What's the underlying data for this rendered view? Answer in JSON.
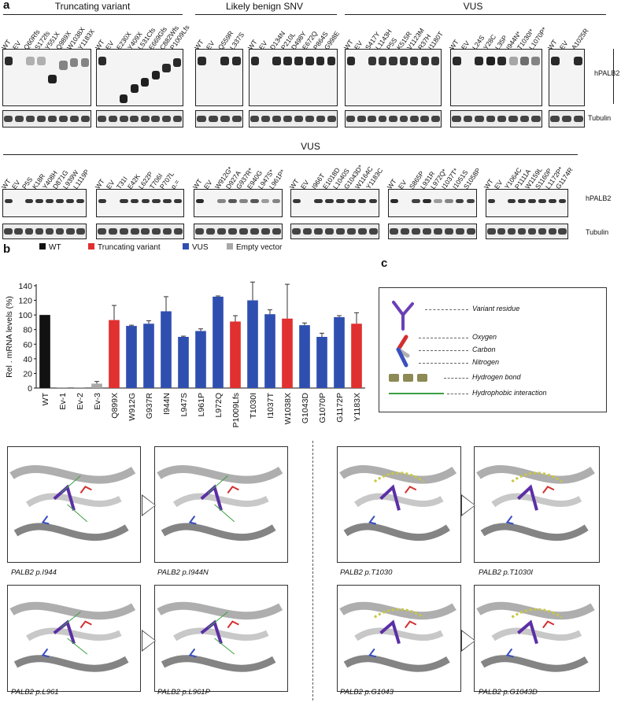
{
  "panels": {
    "a": "a",
    "b": "b",
    "c": "c"
  },
  "row1": {
    "groups": [
      {
        "title": "Truncating variant"
      },
      {
        "title": "Likely benign SNV"
      },
      {
        "title": "VUS"
      }
    ],
    "blots": [
      {
        "lanes": [
          "WT",
          "EV",
          "Q60Rfs",
          "S172fs",
          "Y551X",
          "Q989X",
          "W1038X",
          "Y1183X"
        ]
      },
      {
        "lanes": [
          "WT",
          "EV",
          "E230X",
          "Y409X",
          "L531Cfs",
          "E669Gfs",
          "C882Wfs",
          "P1009Lfs"
        ]
      },
      {
        "lanes": [
          "WT",
          "EV",
          "Q559R",
          "L337S"
        ]
      },
      {
        "lanes": [
          "WT",
          "EV",
          "D134N",
          "P210L",
          "D498Y",
          "E672Q",
          "P864S",
          "G998E"
        ]
      },
      {
        "lanes": [
          "WT",
          "EV",
          "S417Y",
          "L1143H",
          "P5S",
          "K515R",
          "V1123M",
          "R37H",
          "I1180T"
        ]
      },
      {
        "lanes": [
          "WT",
          "EV",
          "L24S",
          "Y28C",
          "L35P",
          "I944N*",
          "T1030I*",
          "L1070P*"
        ]
      },
      {
        "lanes": [
          "WT",
          "EV",
          "A1025R"
        ]
      }
    ],
    "side_label_top": "hPALB2",
    "side_label_bottom": "Tubulin"
  },
  "row2": {
    "title": "VUS",
    "blots": [
      {
        "lanes": [
          "WT",
          "EV",
          "P5S",
          "K18R",
          "Y408H",
          "D871G",
          "L939W",
          "L1119P"
        ]
      },
      {
        "lanes": [
          "WT",
          "EV",
          "T31I",
          "E42K",
          "L622P",
          "T706I",
          "P707L",
          "p.="
        ]
      },
      {
        "lanes": [
          "WT",
          "EV",
          "W912G*",
          "D927A",
          "G937R*",
          "E940G",
          "L947S*",
          "L961P*"
        ]
      },
      {
        "lanes": [
          "WT",
          "EV",
          "I966T",
          "E1018D",
          "L1040S",
          "G1043D*",
          "W1164C",
          "Y1183C"
        ]
      },
      {
        "lanes": [
          "WT",
          "EV",
          "S865P",
          "L931R",
          "L972Q*",
          "I1037T*",
          "I1051S",
          "S1058P"
        ]
      },
      {
        "lanes": [
          "WT",
          "EV",
          "Y1064C",
          "P1111A",
          "W1159L",
          "S1160P",
          "L1172P*",
          "G1174R"
        ]
      }
    ],
    "side_label_top": "hPALB2",
    "side_label_bottom": "Tubulin"
  },
  "chart_data": {
    "type": "bar",
    "ylabel": "Rel . mRNA levels (%)",
    "ylim": [
      0,
      140
    ],
    "yticks": [
      0,
      20,
      40,
      60,
      80,
      100,
      120,
      140
    ],
    "legend": [
      {
        "name": "WT",
        "color": "#111111"
      },
      {
        "name": "Truncating variant",
        "color": "#e03030"
      },
      {
        "name": "VUS",
        "color": "#2f4fb0"
      },
      {
        "name": "Empty vector",
        "color": "#a8a8a8"
      }
    ],
    "categories": [
      "WT",
      "Ev-1",
      "Ev-2",
      "Ev-3",
      "Q899X",
      "W912G",
      "G937R",
      "I944N",
      "L947S",
      "L961P",
      "L972Q",
      "P1009Lfs",
      "T1030I",
      "I1037T",
      "W1038X",
      "G1043D",
      "G1070P",
      "G1172P",
      "Y1183X"
    ],
    "values": [
      100,
      1,
      1,
      6,
      93,
      85,
      88,
      105,
      70,
      78,
      125,
      91,
      120,
      101,
      95,
      86,
      70,
      97,
      88
    ],
    "errors": [
      0,
      0,
      0,
      3,
      20,
      1,
      4,
      20,
      1,
      3,
      1,
      8,
      25,
      6,
      47,
      3,
      5,
      2,
      15
    ],
    "groups": [
      "WT",
      "EV",
      "EV",
      "EV",
      "T",
      "V",
      "V",
      "V",
      "V",
      "V",
      "V",
      "T",
      "V",
      "V",
      "T",
      "V",
      "V",
      "V",
      "T"
    ]
  },
  "legend_c": {
    "items": [
      {
        "label": "Variant residue"
      },
      {
        "label": "Oxygen"
      },
      {
        "label": "Carbon"
      },
      {
        "label": "Nitrogen"
      },
      {
        "label": "Hydrogen bond"
      },
      {
        "label": "Hydrophobic interaction"
      }
    ]
  },
  "structures": [
    {
      "caption": "PALB2 p.I944"
    },
    {
      "caption": "PALB2 p.I944N"
    },
    {
      "caption": "PALB2 p.T1030"
    },
    {
      "caption": "PALB2 p.T1030I"
    },
    {
      "caption": "PALB2 p.L961"
    },
    {
      "caption": "PALB2 p.L961P"
    },
    {
      "caption": "PALB2 p.G1043"
    },
    {
      "caption": "PALB2 p.G1043D"
    }
  ]
}
